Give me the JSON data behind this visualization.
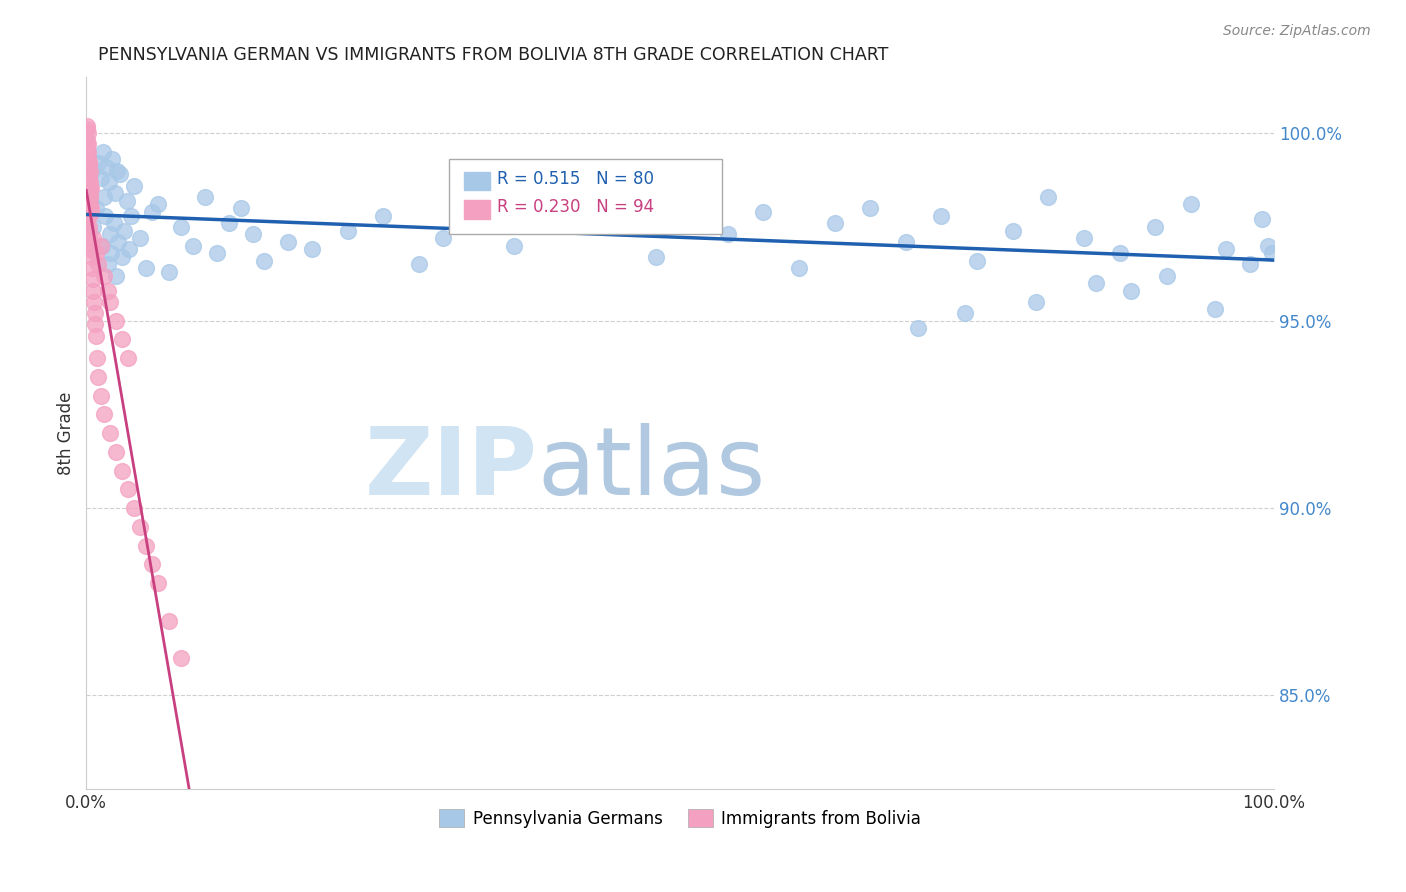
{
  "title": "PENNSYLVANIA GERMAN VS IMMIGRANTS FROM BOLIVIA 8TH GRADE CORRELATION CHART",
  "source": "Source: ZipAtlas.com",
  "ylabel": "8th Grade",
  "right_yticks": [
    85.0,
    90.0,
    95.0,
    100.0
  ],
  "legend_blue_r": "R = 0.515",
  "legend_blue_n": "N = 80",
  "legend_pink_r": "R = 0.230",
  "legend_pink_n": "N = 94",
  "blue_color": "#a8c8e8",
  "pink_color": "#f4a0c0",
  "blue_line_color": "#2060b0",
  "pink_line_color": "#c84080",
  "watermark_zip_color": "#d0e4f4",
  "watermark_atlas_color": "#b0c8e0",
  "background_color": "#ffffff",
  "grid_color": "#d0d0d0",
  "right_axis_color": "#4488cc",
  "title_color": "#222222",
  "source_color": "#888888",
  "ylim_min": 82.5,
  "ylim_max": 101.5,
  "xlim_min": 0,
  "xlim_max": 100,
  "blue_x": [
    0.3,
    0.5,
    0.6,
    0.8,
    1.0,
    1.2,
    1.3,
    1.4,
    1.5,
    1.6,
    1.7,
    1.8,
    1.9,
    2.0,
    2.1,
    2.2,
    2.3,
    2.4,
    2.5,
    2.6,
    2.7,
    2.8,
    3.0,
    3.2,
    3.4,
    3.6,
    3.8,
    4.0,
    4.5,
    5.0,
    5.5,
    6.0,
    7.0,
    8.0,
    9.0,
    10.0,
    11.0,
    12.0,
    13.0,
    14.0,
    15.0,
    17.0,
    19.0,
    22.0,
    25.0,
    28.0,
    30.0,
    33.0,
    36.0,
    39.0,
    42.0,
    45.0,
    48.0,
    51.0,
    54.0,
    57.0,
    60.0,
    63.0,
    66.0,
    69.0,
    72.0,
    75.0,
    78.0,
    81.0,
    84.0,
    87.0,
    90.0,
    93.0,
    96.0,
    99.0,
    70.0,
    74.0,
    80.0,
    85.0,
    88.0,
    91.0,
    95.0,
    98.0,
    99.5,
    99.8
  ],
  "blue_y": [
    98.5,
    99.0,
    97.5,
    98.0,
    99.2,
    98.8,
    97.0,
    99.5,
    98.3,
    97.8,
    99.1,
    96.5,
    98.7,
    97.3,
    96.8,
    99.3,
    97.6,
    98.4,
    96.2,
    99.0,
    97.1,
    98.9,
    96.7,
    97.4,
    98.2,
    96.9,
    97.8,
    98.6,
    97.2,
    96.4,
    97.9,
    98.1,
    96.3,
    97.5,
    97.0,
    98.3,
    96.8,
    97.6,
    98.0,
    97.3,
    96.6,
    97.1,
    96.9,
    97.4,
    97.8,
    96.5,
    97.2,
    98.4,
    97.0,
    97.7,
    98.1,
    97.5,
    96.7,
    98.2,
    97.3,
    97.9,
    96.4,
    97.6,
    98.0,
    97.1,
    97.8,
    96.6,
    97.4,
    98.3,
    97.2,
    96.8,
    97.5,
    98.1,
    96.9,
    97.7,
    94.8,
    95.2,
    95.5,
    96.0,
    95.8,
    96.2,
    95.3,
    96.5,
    97.0,
    96.8
  ],
  "pink_x": [
    0.05,
    0.08,
    0.1,
    0.12,
    0.15,
    0.18,
    0.2,
    0.22,
    0.25,
    0.28,
    0.3,
    0.32,
    0.35,
    0.38,
    0.4,
    0.05,
    0.08,
    0.1,
    0.12,
    0.15,
    0.18,
    0.2,
    0.05,
    0.1,
    0.15,
    0.2,
    0.25,
    0.3,
    0.35,
    0.4,
    0.05,
    0.08,
    0.1,
    0.15,
    0.2,
    0.25,
    0.05,
    0.1,
    0.15,
    0.2,
    0.05,
    0.08,
    0.1,
    0.05,
    0.08,
    0.1,
    0.15,
    0.2,
    0.25,
    0.3,
    0.05,
    0.08,
    0.1,
    0.05,
    0.08,
    0.05,
    0.1,
    0.15,
    0.05,
    0.08,
    0.6,
    0.8,
    1.0,
    1.2,
    1.5,
    1.8,
    2.0,
    2.5,
    3.0,
    3.5,
    0.4,
    0.45,
    0.5,
    0.55,
    0.6,
    0.65,
    0.7,
    0.75,
    0.8,
    0.9,
    1.0,
    1.2,
    1.5,
    2.0,
    2.5,
    3.0,
    3.5,
    4.0,
    4.5,
    5.0,
    5.5,
    6.0,
    7.0,
    8.0
  ],
  "pink_y": [
    99.8,
    100.2,
    99.5,
    100.0,
    99.3,
    99.7,
    98.8,
    99.2,
    98.5,
    99.0,
    98.3,
    98.7,
    98.1,
    98.5,
    97.9,
    99.6,
    99.1,
    98.9,
    99.3,
    98.6,
    99.0,
    98.4,
    100.1,
    99.8,
    99.5,
    99.2,
    98.9,
    98.6,
    98.3,
    98.0,
    99.4,
    99.0,
    98.7,
    98.4,
    98.1,
    97.8,
    99.2,
    98.8,
    98.5,
    98.2,
    99.0,
    98.6,
    98.3,
    98.8,
    98.4,
    98.1,
    97.8,
    97.5,
    97.2,
    96.9,
    98.5,
    98.1,
    97.8,
    98.3,
    97.9,
    98.1,
    97.7,
    97.4,
    97.8,
    97.5,
    97.2,
    96.8,
    96.5,
    97.0,
    96.2,
    95.8,
    95.5,
    95.0,
    94.5,
    94.0,
    97.0,
    96.7,
    96.4,
    96.1,
    95.8,
    95.5,
    95.2,
    94.9,
    94.6,
    94.0,
    93.5,
    93.0,
    92.5,
    92.0,
    91.5,
    91.0,
    90.5,
    90.0,
    89.5,
    89.0,
    88.5,
    88.0,
    87.0,
    86.0
  ]
}
